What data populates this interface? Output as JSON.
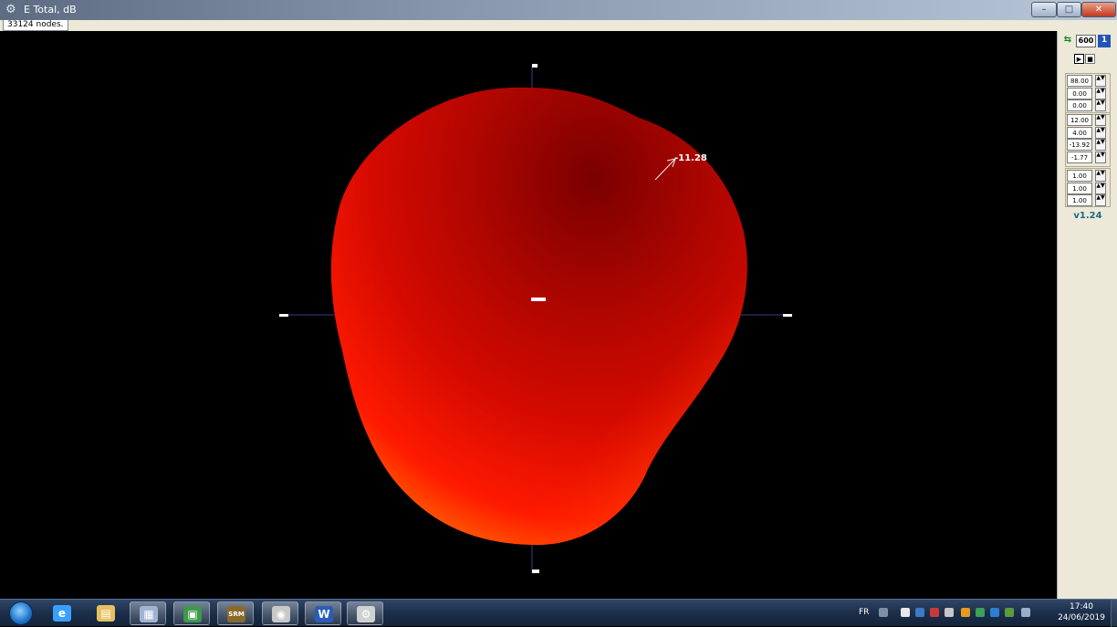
{
  "window": {
    "title": "E Total, dB",
    "status_text": "33124 nodes.",
    "controls": {
      "minimize": "–",
      "maximize": "□",
      "close": "✕"
    }
  },
  "viewport": {
    "axis_labels": {
      "top": "■",
      "bottom": "■■",
      "left": "■",
      "right": "■",
      "center": "■■"
    },
    "marker_label": "-11.28",
    "surface_colors": {
      "bright": "#ff1a00",
      "mid": "#d40a00",
      "dark": "#7a0000",
      "edge": "#ff8a00"
    }
  },
  "side_panel": {
    "toolbar": {
      "tool_a": "⇆",
      "tool_b": "600",
      "tool_c": "1"
    },
    "playback": {
      "play": "▶",
      "stop": "■"
    },
    "group1": [
      "88.00",
      "0.00",
      "0.00"
    ],
    "group2": [
      "12.00",
      "4.00",
      "-13.92",
      "-1.77"
    ],
    "group3": [
      "1.00",
      "1.00",
      "1.00"
    ],
    "version": "v1.24"
  },
  "taskbar": {
    "apps": [
      {
        "name": "internet-explorer",
        "glyph": "e",
        "color": "#3aa0ff"
      },
      {
        "name": "file-explorer",
        "glyph": "▤",
        "color": "#e8c060"
      },
      {
        "name": "calculator",
        "glyph": "▦",
        "color": "#9fb4d0"
      },
      {
        "name": "image-viewer",
        "glyph": "▣",
        "color": "#3c9a4a"
      },
      {
        "name": "srm-app",
        "glyph": "SRM",
        "color": "#8a6a2a"
      },
      {
        "name": "media-app",
        "glyph": "◉",
        "color": "#c8c8c8"
      },
      {
        "name": "word",
        "glyph": "W",
        "color": "#2b5db8"
      },
      {
        "name": "settings-app",
        "glyph": "⚙",
        "color": "#d0d0d0"
      }
    ],
    "tray_lang": "FR",
    "time": "17:40",
    "date": "24/06/2019"
  }
}
